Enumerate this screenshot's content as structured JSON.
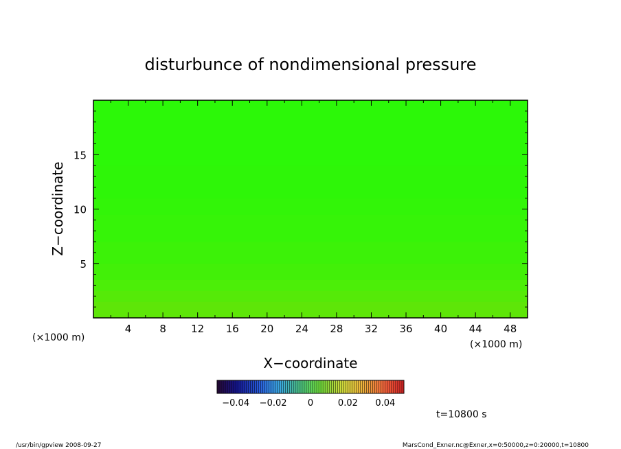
{
  "chart_data": {
    "type": "heatmap",
    "title": "disturbunce of nondimensional pressure",
    "xlabel": "X−coordinate",
    "ylabel": "Z−coordinate",
    "x_unit": "(×1000 m)",
    "y_unit": "(×1000 m)",
    "xlim": [
      0,
      50
    ],
    "ylim": [
      0,
      20
    ],
    "x_ticks": [
      4,
      8,
      12,
      16,
      20,
      24,
      28,
      32,
      36,
      40,
      44,
      48
    ],
    "x_tick_labels": [
      "4",
      "8",
      "12",
      "16",
      "20",
      "24",
      "28",
      "32",
      "36",
      "40",
      "44",
      "48"
    ],
    "y_ticks": [
      5,
      10,
      15
    ],
    "y_tick_labels": [
      "5",
      "10",
      "15"
    ],
    "z_bands": [
      {
        "z0": 0.0,
        "z1": 1.5,
        "color": "#5ee608"
      },
      {
        "z0": 1.5,
        "z1": 2.5,
        "color": "#55ea08"
      },
      {
        "z0": 2.5,
        "z1": 3.5,
        "color": "#4cee08"
      },
      {
        "z0": 3.5,
        "z1": 5.0,
        "color": "#42f008"
      },
      {
        "z0": 5.0,
        "z1": 7.0,
        "color": "#3cf208"
      },
      {
        "z0": 7.0,
        "z1": 9.5,
        "color": "#36f408"
      },
      {
        "z0": 9.5,
        "z1": 11.0,
        "color": "#32f508"
      },
      {
        "z0": 11.0,
        "z1": 14.0,
        "color": "#2ef608"
      },
      {
        "z0": 14.0,
        "z1": 20.0,
        "color": "#2cf808"
      }
    ],
    "colorbar": {
      "range": [
        -0.05,
        0.05
      ],
      "tick_labels": [
        {
          "value": -0.04,
          "label": "−0.04"
        },
        {
          "value": -0.02,
          "label": "−0.02"
        },
        {
          "value": 0,
          "label": "0"
        },
        {
          "value": 0.02,
          "label": "0.02"
        },
        {
          "value": 0.04,
          "label": "0.04"
        }
      ]
    },
    "time_label": "t=10800 s"
  },
  "footer": {
    "left": "/usr/bin/gpview   2008-09-27",
    "right": "MarsCond_Exner.nc@Exner,x=0:50000,z=0:20000,t=10800"
  }
}
